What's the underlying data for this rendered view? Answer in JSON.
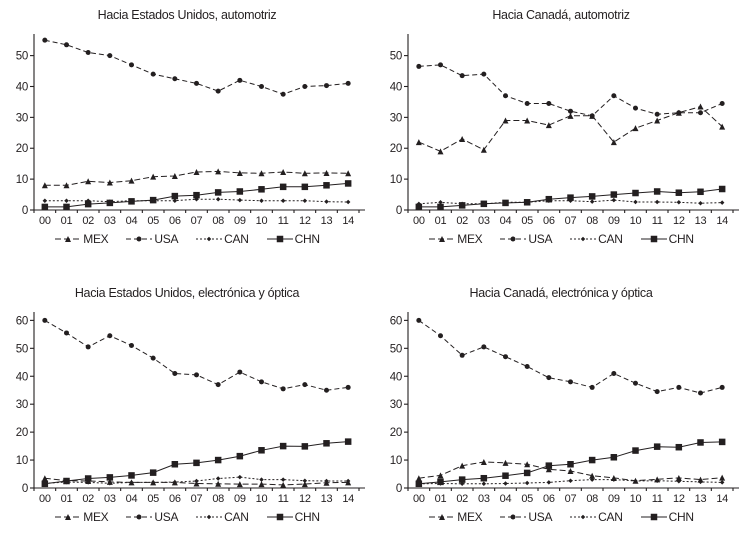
{
  "page": {
    "background": "#ffffff",
    "text_color": "#231f20"
  },
  "chart_data": [
    {
      "type": "line",
      "title": "Hacia Estados Unidos, automotriz",
      "x": [
        "00",
        "01",
        "02",
        "03",
        "04",
        "05",
        "06",
        "07",
        "08",
        "09",
        "10",
        "11",
        "12",
        "13",
        "14"
      ],
      "ylim": [
        0,
        57
      ],
      "yticks": [
        0,
        10,
        20,
        30,
        40,
        50
      ],
      "grid": false,
      "legend_position": "bottom",
      "series": [
        {
          "name": "MEX",
          "marker": "triangle-icon",
          "dash": "6 3",
          "values": [
            8,
            8,
            9.3,
            8.9,
            9.5,
            10.8,
            11,
            12.3,
            12.5,
            12,
            11.9,
            12.3,
            11.9,
            12,
            11.9
          ]
        },
        {
          "name": "USA",
          "marker": "circle-icon",
          "dash": "5 3",
          "values": [
            55,
            53.5,
            51,
            50,
            47,
            44,
            42.5,
            41,
            38.5,
            42,
            40,
            37.5,
            40,
            40.3,
            41
          ]
        },
        {
          "name": "CAN",
          "marker": "diamond-icon",
          "dash": "2 2",
          "values": [
            3,
            3,
            3,
            2.7,
            3,
            3,
            3,
            3.5,
            3.5,
            3.2,
            3,
            3,
            3,
            2.7,
            2.6
          ]
        },
        {
          "name": "CHN",
          "marker": "square-icon",
          "dash": "",
          "values": [
            1,
            1,
            1.9,
            2.3,
            2.8,
            3.2,
            4.5,
            4.8,
            5.7,
            6,
            6.7,
            7.5,
            7.5,
            8,
            8.6
          ]
        }
      ]
    },
    {
      "type": "line",
      "title": "Hacia Canadá, automotriz",
      "x": [
        "00",
        "01",
        "02",
        "03",
        "04",
        "05",
        "06",
        "07",
        "08",
        "09",
        "10",
        "11",
        "12",
        "13",
        "14"
      ],
      "ylim": [
        0,
        57
      ],
      "yticks": [
        0,
        10,
        20,
        30,
        40,
        50
      ],
      "grid": false,
      "legend_position": "bottom",
      "series": [
        {
          "name": "MEX",
          "marker": "triangle-icon",
          "dash": "6 3",
          "values": [
            22,
            19,
            23,
            19.5,
            29,
            29,
            27.5,
            30.5,
            30.5,
            22,
            26.5,
            29,
            31.5,
            33.5,
            27
          ]
        },
        {
          "name": "USA",
          "marker": "circle-icon",
          "dash": "5 3",
          "values": [
            46.5,
            47,
            43.5,
            44,
            37,
            34.5,
            34.5,
            32,
            30.5,
            37,
            33,
            31,
            31.5,
            31.5,
            34.5
          ]
        },
        {
          "name": "CAN",
          "marker": "diamond-icon",
          "dash": "2 2",
          "values": [
            2,
            2.5,
            2,
            2,
            2.5,
            2.5,
            3,
            3,
            2.7,
            3.2,
            2.6,
            2.6,
            2.5,
            2.2,
            2.4
          ]
        },
        {
          "name": "CHN",
          "marker": "square-icon",
          "dash": "",
          "values": [
            1,
            1,
            1.5,
            2,
            2.3,
            2.5,
            3.5,
            4,
            4.4,
            5,
            5.5,
            6,
            5.6,
            5.9,
            6.8
          ]
        }
      ]
    },
    {
      "type": "line",
      "title": "Hacia Estados Unidos, electrónica y óptica",
      "x": [
        "00",
        "01",
        "02",
        "03",
        "04",
        "05",
        "06",
        "07",
        "08",
        "09",
        "10",
        "11",
        "12",
        "13",
        "14"
      ],
      "ylim": [
        0,
        63
      ],
      "yticks": [
        0,
        10,
        20,
        30,
        40,
        50,
        60
      ],
      "grid": false,
      "legend_position": "bottom",
      "series": [
        {
          "name": "MEX",
          "marker": "triangle-icon",
          "dash": "6 3",
          "values": [
            3.5,
            2.6,
            2.5,
            2.2,
            2,
            2,
            2,
            1.6,
            1.5,
            1.4,
            1.4,
            1.1,
            1.4,
            1.9,
            2
          ]
        },
        {
          "name": "USA",
          "marker": "circle-icon",
          "dash": "5 3",
          "values": [
            60,
            55.5,
            50.5,
            54.5,
            51,
            46.5,
            41,
            40.5,
            37,
            41.5,
            38,
            35.5,
            37,
            35,
            36
          ]
        },
        {
          "name": "CAN",
          "marker": "diamond-icon",
          "dash": "2 2",
          "values": [
            1.7,
            2.1,
            2,
            1.7,
            2,
            2,
            2.1,
            2.5,
            3.4,
            3.9,
            3,
            3,
            2.6,
            2.5,
            2.5
          ]
        },
        {
          "name": "CHN",
          "marker": "square-icon",
          "dash": "",
          "values": [
            1.5,
            2.5,
            3.4,
            3.8,
            4.5,
            5.5,
            8.5,
            9,
            10,
            11.4,
            13.5,
            15,
            14.9,
            16,
            16.6
          ]
        }
      ]
    },
    {
      "type": "line",
      "title": "Hacia Canadá, electrónica y óptica",
      "x": [
        "00",
        "01",
        "02",
        "03",
        "04",
        "05",
        "06",
        "07",
        "08",
        "09",
        "10",
        "11",
        "12",
        "13",
        "14"
      ],
      "ylim": [
        0,
        63
      ],
      "yticks": [
        0,
        10,
        20,
        30,
        40,
        50,
        60
      ],
      "grid": false,
      "legend_position": "bottom",
      "series": [
        {
          "name": "MEX",
          "marker": "triangle-icon",
          "dash": "6 3",
          "values": [
            3.5,
            4.5,
            8,
            9.3,
            9,
            8.5,
            6.7,
            6.1,
            4.4,
            3.6,
            2.6,
            3.1,
            3.6,
            3,
            3.7
          ]
        },
        {
          "name": "USA",
          "marker": "circle-icon",
          "dash": "5 3",
          "values": [
            60,
            54.5,
            47.5,
            50.5,
            47,
            43.5,
            39.5,
            38,
            36,
            41,
            37.5,
            34.5,
            36,
            34,
            36
          ]
        },
        {
          "name": "CAN",
          "marker": "diamond-icon",
          "dash": "2 2",
          "values": [
            1.5,
            1.6,
            1.5,
            1.5,
            1.6,
            1.8,
            2,
            2.6,
            3,
            3,
            2.5,
            2.6,
            2.4,
            2.2,
            2
          ]
        },
        {
          "name": "CHN",
          "marker": "square-icon",
          "dash": "",
          "values": [
            1.5,
            2.2,
            3,
            3.5,
            4.4,
            5.4,
            8,
            8.5,
            10,
            11,
            13.4,
            14.8,
            14.6,
            16.3,
            16.5
          ]
        }
      ]
    }
  ]
}
